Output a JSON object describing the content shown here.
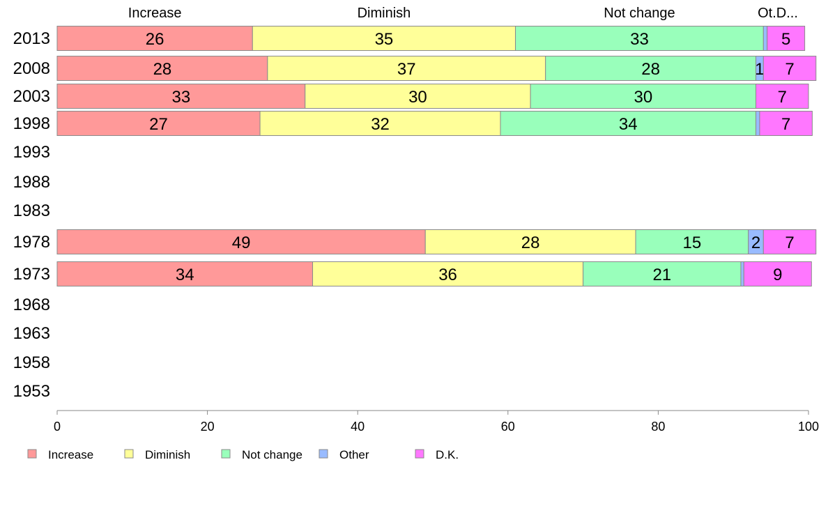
{
  "chart_data": {
    "type": "bar",
    "orientation": "horizontal",
    "stacked": true,
    "categories": [
      "2013",
      "2008",
      "2003",
      "1998",
      "1993",
      "1988",
      "1983",
      "1978",
      "1973",
      "1968",
      "1963",
      "1958",
      "1953"
    ],
    "series": [
      {
        "name": "Increase",
        "color": "#ff9999",
        "values": [
          26,
          28,
          33,
          27,
          null,
          null,
          null,
          49,
          34,
          null,
          null,
          null,
          null
        ]
      },
      {
        "name": "Diminish",
        "color": "#ffff99",
        "values": [
          35,
          37,
          30,
          32,
          null,
          null,
          null,
          28,
          36,
          null,
          null,
          null,
          null
        ]
      },
      {
        "name": "Not change",
        "color": "#99ffbb",
        "values": [
          33,
          28,
          30,
          34,
          null,
          null,
          null,
          15,
          21,
          null,
          null,
          null,
          null
        ]
      },
      {
        "name": "Other",
        "color": "#99bbff",
        "values": [
          0.5,
          1,
          0,
          0.5,
          null,
          null,
          null,
          2,
          0.4,
          null,
          null,
          null,
          null
        ]
      },
      {
        "name": "D.K.",
        "color": "#ff77ff",
        "values": [
          5,
          7,
          7,
          7,
          null,
          null,
          null,
          7,
          9,
          null,
          null,
          null,
          null
        ]
      }
    ],
    "data_labels": [
      [
        "26",
        "35",
        "33",
        "",
        "5"
      ],
      [
        "28",
        "37",
        "28",
        "1",
        "7"
      ],
      [
        "33",
        "30",
        "30",
        "",
        "7"
      ],
      [
        "27",
        "32",
        "34",
        "",
        "7"
      ],
      [],
      [],
      [],
      [
        "49",
        "28",
        "15",
        "2",
        "7"
      ],
      [
        "34",
        "36",
        "21",
        "",
        "9"
      ],
      [],
      [],
      [],
      []
    ],
    "column_headers": [
      "Increase",
      "Diminish",
      "Not change",
      "Ot.D..."
    ],
    "x_ticks": [
      "0",
      "20",
      "40",
      "60",
      "80",
      "100"
    ],
    "xlim": [
      0,
      100
    ],
    "legend": [
      "Increase",
      "Diminish",
      "Not change",
      "Other",
      "D.K."
    ],
    "legend_position": "bottom",
    "grid": false,
    "title": "",
    "xlabel": "",
    "ylabel": ""
  }
}
